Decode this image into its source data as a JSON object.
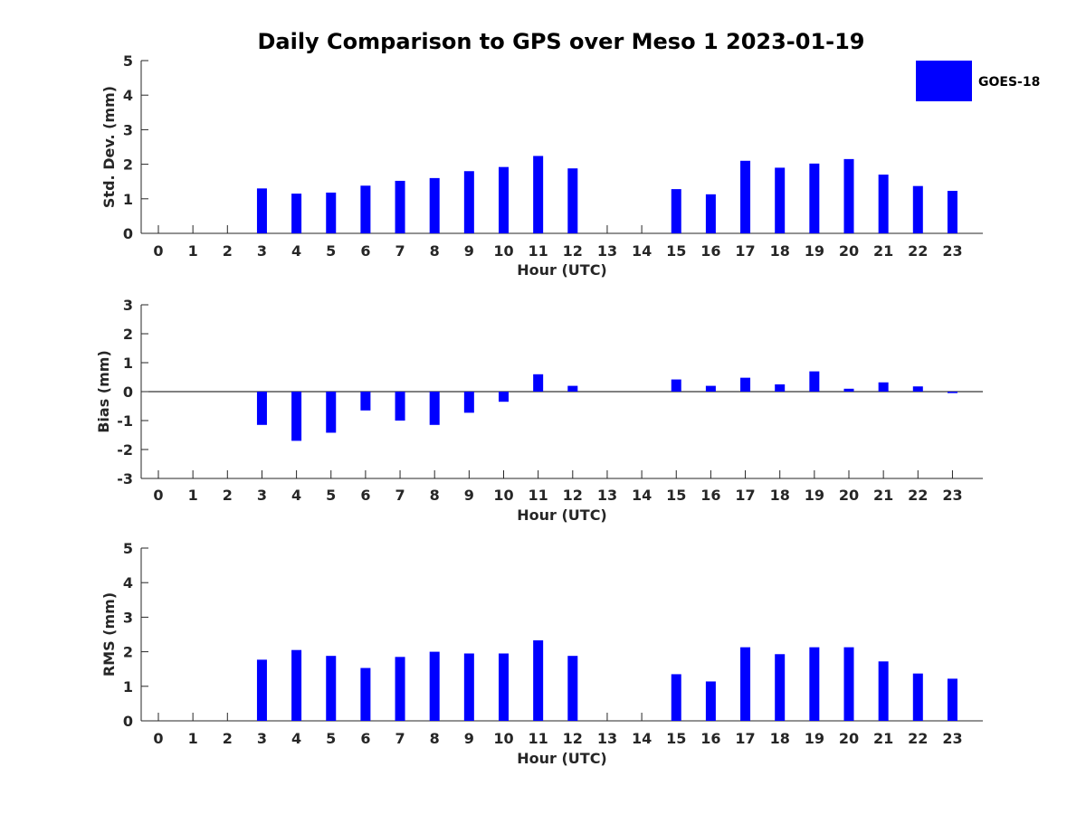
{
  "title": "Daily Comparison to GPS over Meso 1 2023-01-19",
  "legend": {
    "label": "GOES-18",
    "color": "#0000ff",
    "placement": "top-right"
  },
  "colors": {
    "bar": "#0000ff",
    "axis": "#262626",
    "zero_line": "#000000"
  },
  "chart_data": [
    {
      "type": "bar",
      "xlabel": "Hour (UTC)",
      "ylabel": "Std. Dev. (mm)",
      "ylim": [
        0,
        5
      ],
      "yticks": [
        "0",
        "1",
        "2",
        "3",
        "4",
        "5"
      ],
      "yticks_values": [
        0,
        1,
        2,
        3,
        4,
        5
      ],
      "categories": [
        "0",
        "1",
        "2",
        "3",
        "4",
        "5",
        "6",
        "7",
        "8",
        "9",
        "10",
        "11",
        "12",
        "13",
        "14",
        "15",
        "16",
        "17",
        "18",
        "19",
        "20",
        "21",
        "22",
        "23"
      ],
      "values": [
        null,
        null,
        null,
        1.3,
        1.15,
        1.18,
        1.38,
        1.52,
        1.6,
        1.8,
        1.92,
        2.24,
        1.88,
        null,
        null,
        1.28,
        1.13,
        2.1,
        1.9,
        2.02,
        2.15,
        1.7,
        1.37,
        1.23
      ]
    },
    {
      "type": "bar",
      "xlabel": "Hour (UTC)",
      "ylabel": "Bias (mm)",
      "ylim": [
        -3,
        3
      ],
      "yticks": [
        "-3",
        "-2",
        "-1",
        "0",
        "1",
        "2",
        "3"
      ],
      "yticks_values": [
        -3,
        -2,
        -1,
        0,
        1,
        2,
        3
      ],
      "categories": [
        "0",
        "1",
        "2",
        "3",
        "4",
        "5",
        "6",
        "7",
        "8",
        "9",
        "10",
        "11",
        "12",
        "13",
        "14",
        "15",
        "16",
        "17",
        "18",
        "19",
        "20",
        "21",
        "22",
        "23"
      ],
      "values": [
        null,
        null,
        null,
        -1.15,
        -1.7,
        -1.42,
        -0.65,
        -1.0,
        -1.15,
        -0.73,
        -0.35,
        0.6,
        0.2,
        null,
        null,
        0.42,
        0.2,
        0.48,
        0.25,
        0.7,
        0.1,
        0.32,
        0.18,
        -0.05
      ]
    },
    {
      "type": "bar",
      "xlabel": "Hour (UTC)",
      "ylabel": "RMS (mm)",
      "ylim": [
        0,
        5
      ],
      "yticks": [
        "0",
        "1",
        "2",
        "3",
        "4",
        "5"
      ],
      "yticks_values": [
        0,
        1,
        2,
        3,
        4,
        5
      ],
      "categories": [
        "0",
        "1",
        "2",
        "3",
        "4",
        "5",
        "6",
        "7",
        "8",
        "9",
        "10",
        "11",
        "12",
        "13",
        "14",
        "15",
        "16",
        "17",
        "18",
        "19",
        "20",
        "21",
        "22",
        "23"
      ],
      "values": [
        null,
        null,
        null,
        1.77,
        2.05,
        1.88,
        1.53,
        1.85,
        2.0,
        1.95,
        1.95,
        2.33,
        1.88,
        null,
        null,
        1.35,
        1.14,
        2.13,
        1.93,
        2.13,
        2.13,
        1.72,
        1.37,
        1.22
      ]
    }
  ]
}
